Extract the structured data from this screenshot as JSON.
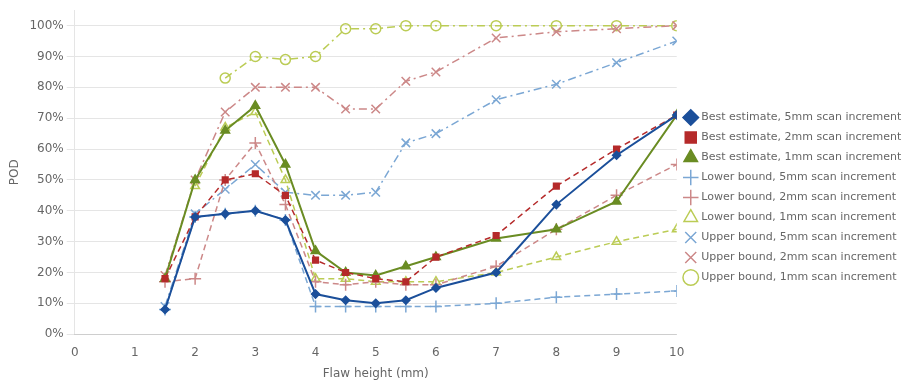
{
  "chart_data": {
    "type": "line",
    "xlabel": "Flaw height (mm)",
    "ylabel": "POD",
    "xlim": [
      0,
      10
    ],
    "ylim": [
      0,
      1.05
    ],
    "xticks": [
      0,
      1,
      2,
      3,
      4,
      5,
      6,
      7,
      8,
      9,
      10
    ],
    "yticks": [
      {
        "value": 0,
        "label": "0%"
      },
      {
        "value": 0.1,
        "label": "10%"
      },
      {
        "value": 0.2,
        "label": "20%"
      },
      {
        "value": 0.3,
        "label": "30%"
      },
      {
        "value": 0.4,
        "label": "40%"
      },
      {
        "value": 0.5,
        "label": "50%"
      },
      {
        "value": 0.6,
        "label": "60%"
      },
      {
        "value": 0.7,
        "label": "70%"
      },
      {
        "value": 0.8,
        "label": "80%"
      },
      {
        "value": 0.9,
        "label": "90%"
      },
      {
        "value": 1.0,
        "label": "100%"
      }
    ],
    "grid": "y",
    "legend": "right",
    "series": [
      {
        "name": "Best estimate, 5mm scan increment",
        "color": "#1B4F9A",
        "marker": "diamond",
        "line_style": "solid",
        "x": [
          1.5,
          2,
          2.5,
          3,
          3.5,
          4,
          4.5,
          5,
          5.5,
          6,
          7,
          8,
          9,
          10
        ],
        "values": [
          0.08,
          0.38,
          0.39,
          0.4,
          0.37,
          0.13,
          0.11,
          0.1,
          0.11,
          0.15,
          0.2,
          0.42,
          0.58,
          0.71
        ]
      },
      {
        "name": "Best estimate, 2mm scan increment",
        "color": "#B52A2A",
        "marker": "square",
        "line_style": "dashed",
        "x": [
          1.5,
          2,
          2.5,
          3,
          3.5,
          4,
          4.5,
          5,
          5.5,
          6,
          7,
          8,
          9,
          10
        ],
        "values": [
          0.18,
          0.38,
          0.5,
          0.52,
          0.45,
          0.24,
          0.2,
          0.18,
          0.17,
          0.25,
          0.32,
          0.48,
          0.6,
          0.71
        ]
      },
      {
        "name": "Best estimate, 1mm scan increment",
        "color": "#6A8C23",
        "marker": "triangle",
        "line_style": "solid",
        "x": [
          1.5,
          2,
          2.5,
          3,
          3.5,
          4,
          4.5,
          5,
          5.5,
          6,
          7,
          8,
          9,
          10
        ],
        "values": [
          0.18,
          0.5,
          0.66,
          0.74,
          0.55,
          0.27,
          0.2,
          0.19,
          0.22,
          0.25,
          0.31,
          0.34,
          0.43,
          0.71
        ]
      },
      {
        "name": "Lower bound, 5mm scan increment",
        "color": "#7BA7D4",
        "marker": "plus",
        "line_style": "dashed",
        "x": [
          1.5,
          2,
          2.5,
          3,
          3.5,
          4,
          4.5,
          5,
          5.5,
          6,
          7,
          8,
          9,
          10
        ],
        "values": [
          0.08,
          0.38,
          0.39,
          0.4,
          0.37,
          0.09,
          0.09,
          0.09,
          0.09,
          0.09,
          0.1,
          0.12,
          0.13,
          0.14
        ]
      },
      {
        "name": "Lower bound, 2mm scan increment",
        "color": "#CC8888",
        "marker": "plus",
        "line_style": "dashed",
        "x": [
          1.5,
          2,
          2.5,
          3,
          3.5,
          4,
          4.5,
          5,
          5.5,
          6,
          7,
          8,
          9,
          10
        ],
        "values": [
          0.17,
          0.18,
          0.5,
          0.62,
          0.42,
          0.17,
          0.16,
          0.17,
          0.16,
          0.16,
          0.22,
          0.34,
          0.45,
          0.55
        ]
      },
      {
        "name": "Lower bound, 1mm scan increment",
        "color": "#BBCC55",
        "marker": "open_triangle",
        "line_style": "dashed",
        "x": [
          2,
          2.5,
          3,
          3.5,
          4,
          4.5,
          5,
          5.5,
          6,
          7,
          8,
          9,
          10
        ],
        "values": [
          0.48,
          0.67,
          0.72,
          0.5,
          0.18,
          0.18,
          0.17,
          0.17,
          0.17,
          0.2,
          0.25,
          0.3,
          0.34
        ]
      },
      {
        "name": "Upper bound, 5mm scan increment",
        "color": "#7BA7D4",
        "marker": "x",
        "line_style": "dashdot",
        "x": [
          1.5,
          2,
          2.5,
          3,
          3.5,
          4,
          4.5,
          5,
          5.5,
          6,
          7,
          8,
          9,
          10
        ],
        "values": [
          0.09,
          0.39,
          0.47,
          0.55,
          0.46,
          0.45,
          0.45,
          0.46,
          0.62,
          0.65,
          0.76,
          0.81,
          0.88,
          0.95
        ]
      },
      {
        "name": "Upper bound, 2mm scan increment",
        "color": "#CC8888",
        "marker": "x",
        "line_style": "dashdot",
        "x": [
          1.5,
          2,
          2.5,
          3,
          3.5,
          4,
          4.5,
          5,
          5.5,
          6,
          7,
          8,
          9,
          10
        ],
        "values": [
          0.19,
          0.5,
          0.72,
          0.8,
          0.8,
          0.8,
          0.73,
          0.73,
          0.82,
          0.85,
          0.96,
          0.98,
          0.99,
          1.0
        ]
      },
      {
        "name": "Upper bound, 1mm scan increment",
        "color": "#BBCC55",
        "marker": "open_circle",
        "line_style": "dashdot",
        "x": [
          2.5,
          3,
          3.5,
          4,
          4.5,
          5,
          5.5,
          6,
          7,
          8,
          9,
          10
        ],
        "values": [
          0.83,
          0.9,
          0.89,
          0.9,
          0.99,
          0.99,
          1.0,
          1.0,
          1.0,
          1.0,
          1.0,
          1.0
        ]
      }
    ]
  }
}
